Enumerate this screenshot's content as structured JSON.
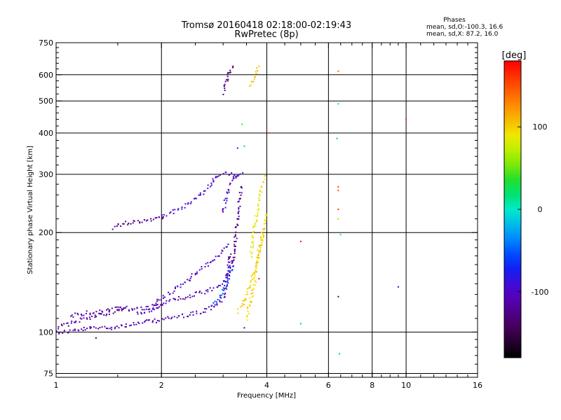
{
  "chart_data": {
    "type": "scatter",
    "title": "Tromsø 20160418 02:18:00-02:19:43",
    "subtitle": "RwPretec (8p)",
    "xlabel": "Frequency [MHz]",
    "ylabel": "Stationary phase Virtual Height [km]",
    "x_scale": "log",
    "y_scale": "log",
    "xlim": [
      1,
      16
    ],
    "ylim": [
      73,
      750
    ],
    "x_ticks": [
      1,
      2,
      4,
      6,
      8,
      10,
      16
    ],
    "y_ticks": [
      75,
      100,
      200,
      300,
      400,
      500,
      600,
      750
    ],
    "grid": true,
    "legend": {
      "title": "Phases",
      "line1": "mean, sd,O:-100.3, 16.6",
      "line2": "mean, sd,X:  87.2, 16.0"
    },
    "colorbar": {
      "label": "[deg]",
      "range": [
        -180,
        180
      ],
      "ticks": [
        100,
        0,
        -100
      ]
    },
    "traces": [
      {
        "x": [
          1.0,
          1.05,
          1.1,
          1.15,
          1.2,
          1.3,
          1.4,
          1.5,
          1.6,
          1.7,
          1.8,
          1.9,
          2.0,
          2.1,
          2.2,
          2.3,
          2.4,
          2.5,
          2.6,
          2.7,
          2.8,
          2.9,
          3.0,
          3.05,
          3.1,
          3.15
        ],
        "y": [
          100,
          100,
          101,
          101,
          102,
          103,
          103,
          104,
          105,
          106,
          107,
          108,
          109,
          110,
          111,
          112,
          113,
          114,
          115,
          117,
          119,
          122,
          127,
          135,
          150,
          175
        ],
        "phase": -110
      },
      {
        "x": [
          1.0,
          1.1,
          1.2,
          1.3,
          1.4,
          1.5,
          1.6,
          1.7,
          1.8,
          1.9,
          2.0
        ],
        "y": [
          103,
          106,
          110,
          112,
          114,
          116,
          117,
          118,
          118,
          119,
          120
        ],
        "phase": -115
      },
      {
        "x": [
          1.1,
          1.2,
          1.3,
          1.4,
          1.5,
          1.6
        ],
        "y": [
          112,
          114,
          115,
          116,
          118,
          120
        ],
        "phase": -120
      },
      {
        "x": [
          1.7,
          1.8,
          1.9,
          2.0,
          2.1,
          2.2,
          2.3,
          2.4,
          2.5,
          2.6,
          2.7,
          2.8,
          2.9,
          3.0,
          3.1,
          3.2
        ],
        "y": [
          113,
          115,
          118,
          121,
          124,
          126,
          127,
          128,
          130,
          131,
          133,
          135,
          137,
          140,
          150,
          165
        ],
        "phase": -105
      },
      {
        "x": [
          1.9,
          2.0,
          2.1,
          2.2,
          2.3,
          2.4,
          2.5,
          2.6,
          2.7,
          2.8,
          2.9,
          3.0,
          3.1
        ],
        "y": [
          122,
          126,
          131,
          136,
          140,
          145,
          150,
          155,
          160,
          165,
          170,
          176,
          186
        ],
        "phase": -100
      },
      {
        "x": [
          1.45,
          1.5,
          1.55,
          1.6,
          1.65,
          1.7,
          1.8,
          1.9,
          2.0,
          2.05
        ],
        "y": [
          207,
          210,
          212,
          214,
          215,
          216,
          218,
          220,
          223,
          227
        ],
        "phase": -118
      },
      {
        "x": [
          2.0,
          2.1,
          2.2,
          2.3,
          2.4,
          2.5,
          2.6,
          2.7,
          2.8,
          2.9,
          3.0,
          3.1,
          3.2
        ],
        "y": [
          225,
          228,
          232,
          238,
          244,
          252,
          262,
          272,
          284,
          298,
          300,
          300,
          298
        ],
        "phase": -95
      },
      {
        "x": [
          3.0,
          3.05,
          3.1,
          3.15,
          3.2,
          3.25,
          3.3,
          3.35,
          3.4
        ],
        "y": [
          230,
          250,
          270,
          280,
          290,
          295,
          300,
          300,
          300
        ],
        "phase": -100
      },
      {
        "x": [
          3.2,
          3.25,
          3.3,
          3.35,
          3.4
        ],
        "y": [
          160,
          190,
          220,
          250,
          280
        ],
        "phase": -125
      },
      {
        "x": [
          3.0,
          3.05,
          3.1,
          3.15,
          3.2
        ],
        "y": [
          530,
          560,
          590,
          615,
          640
        ],
        "phase": -130
      },
      {
        "x": [
          3.5,
          3.55,
          3.6,
          3.65,
          3.7,
          3.75,
          3.8,
          3.85,
          3.9
        ],
        "y": [
          110,
          118,
          126,
          135,
          145,
          158,
          172,
          188,
          206
        ],
        "phase": 95
      },
      {
        "x": [
          3.3,
          3.4,
          3.5,
          3.6,
          3.7,
          3.8,
          3.9,
          4.0
        ],
        "y": [
          115,
          120,
          128,
          140,
          155,
          175,
          200,
          230
        ],
        "phase": 100
      },
      {
        "x": [
          3.6,
          3.65,
          3.7,
          3.75,
          3.8,
          3.85,
          3.9,
          3.95
        ],
        "y": [
          170,
          190,
          210,
          230,
          250,
          265,
          280,
          300
        ],
        "phase": 90
      },
      {
        "x": [
          3.6,
          3.65,
          3.7,
          3.75,
          3.8
        ],
        "y": [
          560,
          580,
          600,
          615,
          635
        ],
        "phase": 105
      },
      {
        "x": [
          2.8,
          2.9,
          3.0,
          3.1,
          3.2
        ],
        "y": [
          120,
          125,
          133,
          145,
          160
        ],
        "phase": -60
      }
    ],
    "scatter_points": [
      {
        "x": 6.4,
        "y": 615,
        "phase": 140
      },
      {
        "x": 6.4,
        "y": 490,
        "phase": 20
      },
      {
        "x": 6.35,
        "y": 385,
        "phase": 30
      },
      {
        "x": 6.4,
        "y": 275,
        "phase": 160
      },
      {
        "x": 6.4,
        "y": 268,
        "phase": 150
      },
      {
        "x": 6.4,
        "y": 235,
        "phase": 160
      },
      {
        "x": 6.4,
        "y": 220,
        "phase": 60
      },
      {
        "x": 6.5,
        "y": 197,
        "phase": 10
      },
      {
        "x": 6.4,
        "y": 128,
        "phase": -140
      },
      {
        "x": 6.45,
        "y": 86,
        "phase": 20
      },
      {
        "x": 5.0,
        "y": 188,
        "phase": 175
      },
      {
        "x": 5.0,
        "y": 106,
        "phase": -20
      },
      {
        "x": 9.5,
        "y": 137,
        "phase": -110
      },
      {
        "x": 10.0,
        "y": 440,
        "phase": 165
      },
      {
        "x": 4.05,
        "y": 400,
        "phase": 150
      },
      {
        "x": 3.4,
        "y": 425,
        "phase": 40
      },
      {
        "x": 3.45,
        "y": 365,
        "phase": 30
      },
      {
        "x": 3.3,
        "y": 360,
        "phase": -80
      },
      {
        "x": 3.45,
        "y": 103,
        "phase": -140
      },
      {
        "x": 1.3,
        "y": 96,
        "phase": -150
      },
      {
        "x": 3.8,
        "y": 145,
        "phase": 175
      }
    ]
  }
}
